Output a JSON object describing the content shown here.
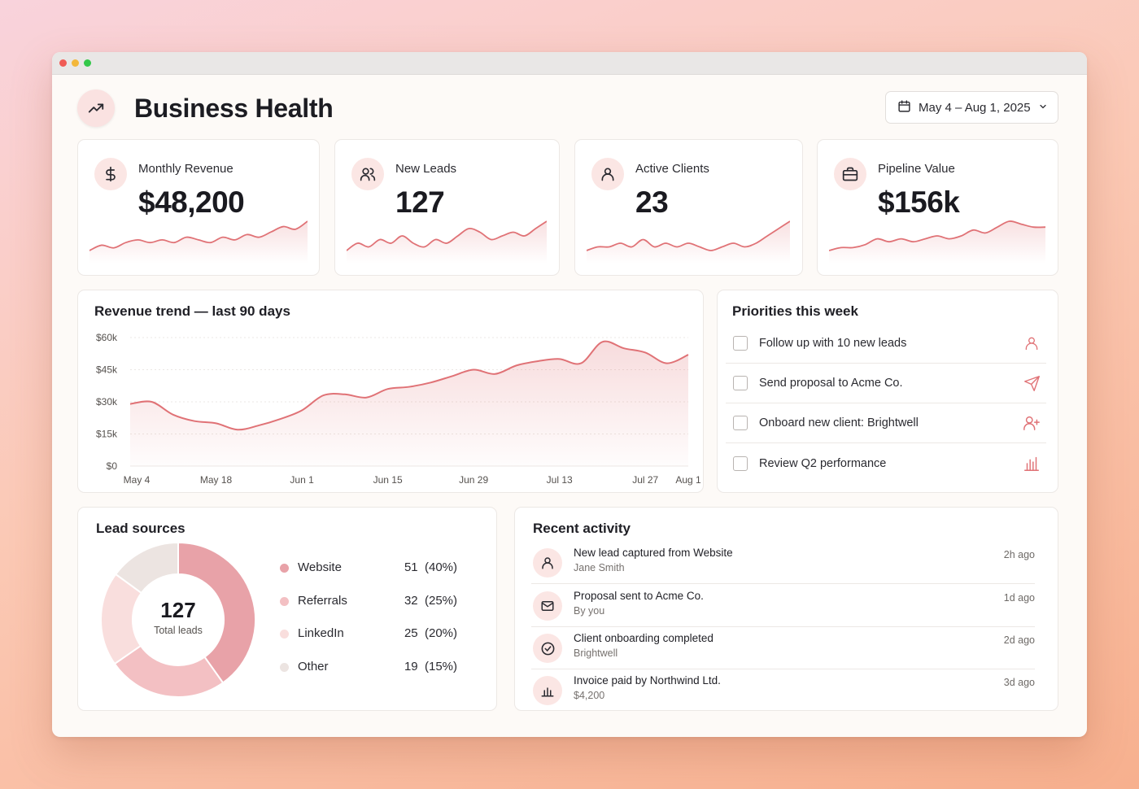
{
  "header": {
    "title": "Business Health",
    "date_range": "May 4 – Aug 1, 2025"
  },
  "kpis": [
    {
      "label": "Monthly Revenue",
      "value": "$48,200",
      "icon": "dollar-icon"
    },
    {
      "label": "New Leads",
      "value": "127",
      "icon": "users-icon"
    },
    {
      "label": "Active Clients",
      "value": "23",
      "icon": "user-icon"
    },
    {
      "label": "Pipeline Value",
      "value": "$156k",
      "icon": "briefcase-icon"
    }
  ],
  "revenue_trend": {
    "title": "Revenue trend — last 90 days"
  },
  "priorities": {
    "title": "Priorities this week",
    "items": [
      {
        "label": "Follow up with 10 new leads",
        "icon": "user-icon"
      },
      {
        "label": "Send proposal to Acme Co.",
        "icon": "send-icon"
      },
      {
        "label": "Onboard new client: Brightwell",
        "icon": "user-plus-icon"
      },
      {
        "label": "Review Q2 performance",
        "icon": "bar-chart-icon"
      }
    ]
  },
  "lead_sources": {
    "title": "Lead sources",
    "total": "127",
    "total_label": "Total leads",
    "items": [
      {
        "name": "Website",
        "value": "51",
        "pct": "(40%)",
        "color": "#e8a2a8"
      },
      {
        "name": "Referrals",
        "value": "32",
        "pct": "(25%)",
        "color": "#f3c0c3"
      },
      {
        "name": "LinkedIn",
        "value": "25",
        "pct": "(20%)",
        "color": "#f9dedd"
      },
      {
        "name": "Other",
        "value": "19",
        "pct": "(15%)",
        "color": "#ece4e1"
      }
    ]
  },
  "activity": {
    "title": "Recent activity",
    "items": [
      {
        "title": "New lead captured from Website",
        "sub": "Jane Smith",
        "time": "2h ago",
        "icon": "user-icon"
      },
      {
        "title": "Proposal sent to Acme Co.",
        "sub": "By you",
        "time": "1d ago",
        "icon": "mail-icon"
      },
      {
        "title": "Client onboarding completed",
        "sub": "Brightwell",
        "time": "2d ago",
        "icon": "check-circle-icon"
      },
      {
        "title": "Invoice paid by Northwind Ltd.",
        "sub": "$4,200",
        "time": "3d ago",
        "icon": "bar-chart-icon"
      }
    ]
  },
  "colors": {
    "accent": "#e07276",
    "accent_soft": "#fbe6e4",
    "background": "#fdfaf7"
  },
  "chart_data": [
    {
      "type": "area",
      "title": "Revenue trend — last 90 days",
      "x": [
        "May 4",
        "May 8",
        "May 11",
        "May 15",
        "May 18",
        "May 22",
        "May 25",
        "May 29",
        "Jun 1",
        "Jun 5",
        "Jun 8",
        "Jun 12",
        "Jun 15",
        "Jun 19",
        "Jun 22",
        "Jun 26",
        "Jun 29",
        "Jul 3",
        "Jul 6",
        "Jul 10",
        "Jul 13",
        "Jul 17",
        "Jul 20",
        "Jul 24",
        "Jul 27",
        "Jul 31",
        "Aug 1"
      ],
      "values": [
        29000,
        30000,
        24000,
        21000,
        20000,
        17000,
        19000,
        22000,
        26000,
        33000,
        33500,
        32000,
        36000,
        37000,
        39000,
        42000,
        45000,
        43000,
        47000,
        49000,
        50000,
        48000,
        58000,
        55000,
        53000,
        48000,
        52000
      ],
      "x_ticks": [
        "May 4",
        "May 18",
        "Jun 1",
        "Jun 15",
        "Jun 29",
        "Jul 13",
        "Jul 27",
        "Aug 1"
      ],
      "y_ticks": [
        "$0",
        "$15k",
        "$30k",
        "$45k",
        "$60k"
      ],
      "ylim": [
        0,
        60000
      ],
      "grid": true
    },
    {
      "type": "pie",
      "categories": [
        "Website",
        "Referrals",
        "LinkedIn",
        "Other"
      ],
      "values": [
        51,
        32,
        25,
        19
      ]
    }
  ],
  "sparklines": [
    [
      3,
      5,
      4,
      6,
      7,
      6,
      7,
      6,
      8,
      7,
      6,
      8,
      7,
      9,
      8,
      10,
      12,
      11,
      14
    ],
    [
      4,
      6,
      5,
      7,
      6,
      8,
      6,
      5,
      7,
      6,
      8,
      10,
      9,
      7,
      8,
      9,
      8,
      10,
      12
    ],
    [
      5,
      6,
      6,
      7,
      6,
      8,
      6,
      7,
      6,
      7,
      6,
      5,
      6,
      7,
      6,
      7,
      9,
      11,
      13
    ],
    [
      3,
      4,
      4,
      5,
      7,
      6,
      7,
      6,
      7,
      8,
      7,
      8,
      10,
      9,
      11,
      13,
      12,
      11,
      11
    ]
  ]
}
